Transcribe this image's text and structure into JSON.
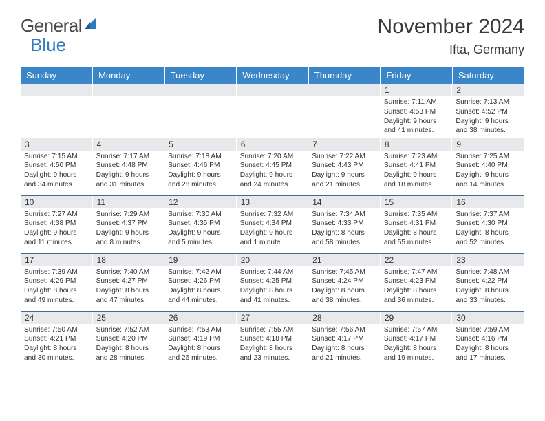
{
  "brand": {
    "part1": "General",
    "part2": "Blue"
  },
  "title": "November 2024",
  "location": "Ifta, Germany",
  "colors": {
    "header_bg": "#3a86c8",
    "header_text": "#ffffff",
    "daynum_bg": "#e7e9ec",
    "row_border": "#4a6a8a",
    "body_text": "#333333",
    "logo_gray": "#4a4a4a",
    "logo_blue": "#2f7ac0"
  },
  "typography": {
    "title_fontsize": 30,
    "location_fontsize": 18,
    "header_fontsize": 13,
    "daynum_fontsize": 12,
    "cell_fontsize": 10.2
  },
  "days_of_week": [
    "Sunday",
    "Monday",
    "Tuesday",
    "Wednesday",
    "Thursday",
    "Friday",
    "Saturday"
  ],
  "weeks": [
    [
      null,
      null,
      null,
      null,
      null,
      {
        "n": "1",
        "sunrise": "7:11 AM",
        "sunset": "4:53 PM",
        "day_h": "9",
        "day_m": "41"
      },
      {
        "n": "2",
        "sunrise": "7:13 AM",
        "sunset": "4:52 PM",
        "day_h": "9",
        "day_m": "38"
      }
    ],
    [
      {
        "n": "3",
        "sunrise": "7:15 AM",
        "sunset": "4:50 PM",
        "day_h": "9",
        "day_m": "34"
      },
      {
        "n": "4",
        "sunrise": "7:17 AM",
        "sunset": "4:48 PM",
        "day_h": "9",
        "day_m": "31"
      },
      {
        "n": "5",
        "sunrise": "7:18 AM",
        "sunset": "4:46 PM",
        "day_h": "9",
        "day_m": "28"
      },
      {
        "n": "6",
        "sunrise": "7:20 AM",
        "sunset": "4:45 PM",
        "day_h": "9",
        "day_m": "24"
      },
      {
        "n": "7",
        "sunrise": "7:22 AM",
        "sunset": "4:43 PM",
        "day_h": "9",
        "day_m": "21"
      },
      {
        "n": "8",
        "sunrise": "7:23 AM",
        "sunset": "4:41 PM",
        "day_h": "9",
        "day_m": "18"
      },
      {
        "n": "9",
        "sunrise": "7:25 AM",
        "sunset": "4:40 PM",
        "day_h": "9",
        "day_m": "14"
      }
    ],
    [
      {
        "n": "10",
        "sunrise": "7:27 AM",
        "sunset": "4:38 PM",
        "day_h": "9",
        "day_m": "11"
      },
      {
        "n": "11",
        "sunrise": "7:29 AM",
        "sunset": "4:37 PM",
        "day_h": "9",
        "day_m": "8"
      },
      {
        "n": "12",
        "sunrise": "7:30 AM",
        "sunset": "4:35 PM",
        "day_h": "9",
        "day_m": "5"
      },
      {
        "n": "13",
        "sunrise": "7:32 AM",
        "sunset": "4:34 PM",
        "day_h": "9",
        "day_m": "1"
      },
      {
        "n": "14",
        "sunrise": "7:34 AM",
        "sunset": "4:33 PM",
        "day_h": "8",
        "day_m": "58"
      },
      {
        "n": "15",
        "sunrise": "7:35 AM",
        "sunset": "4:31 PM",
        "day_h": "8",
        "day_m": "55"
      },
      {
        "n": "16",
        "sunrise": "7:37 AM",
        "sunset": "4:30 PM",
        "day_h": "8",
        "day_m": "52"
      }
    ],
    [
      {
        "n": "17",
        "sunrise": "7:39 AM",
        "sunset": "4:29 PM",
        "day_h": "8",
        "day_m": "49"
      },
      {
        "n": "18",
        "sunrise": "7:40 AM",
        "sunset": "4:27 PM",
        "day_h": "8",
        "day_m": "47"
      },
      {
        "n": "19",
        "sunrise": "7:42 AM",
        "sunset": "4:26 PM",
        "day_h": "8",
        "day_m": "44"
      },
      {
        "n": "20",
        "sunrise": "7:44 AM",
        "sunset": "4:25 PM",
        "day_h": "8",
        "day_m": "41"
      },
      {
        "n": "21",
        "sunrise": "7:45 AM",
        "sunset": "4:24 PM",
        "day_h": "8",
        "day_m": "38"
      },
      {
        "n": "22",
        "sunrise": "7:47 AM",
        "sunset": "4:23 PM",
        "day_h": "8",
        "day_m": "36"
      },
      {
        "n": "23",
        "sunrise": "7:48 AM",
        "sunset": "4:22 PM",
        "day_h": "8",
        "day_m": "33"
      }
    ],
    [
      {
        "n": "24",
        "sunrise": "7:50 AM",
        "sunset": "4:21 PM",
        "day_h": "8",
        "day_m": "30"
      },
      {
        "n": "25",
        "sunrise": "7:52 AM",
        "sunset": "4:20 PM",
        "day_h": "8",
        "day_m": "28"
      },
      {
        "n": "26",
        "sunrise": "7:53 AM",
        "sunset": "4:19 PM",
        "day_h": "8",
        "day_m": "26"
      },
      {
        "n": "27",
        "sunrise": "7:55 AM",
        "sunset": "4:18 PM",
        "day_h": "8",
        "day_m": "23"
      },
      {
        "n": "28",
        "sunrise": "7:56 AM",
        "sunset": "4:17 PM",
        "day_h": "8",
        "day_m": "21"
      },
      {
        "n": "29",
        "sunrise": "7:57 AM",
        "sunset": "4:17 PM",
        "day_h": "8",
        "day_m": "19"
      },
      {
        "n": "30",
        "sunrise": "7:59 AM",
        "sunset": "4:16 PM",
        "day_h": "8",
        "day_m": "17"
      }
    ]
  ],
  "labels": {
    "sunrise": "Sunrise: ",
    "sunset": "Sunset: ",
    "daylight_pre": "Daylight: ",
    "hours_word": " hours",
    "and_word": "and ",
    "minutes_word_one": " minute.",
    "minutes_word": " minutes."
  }
}
